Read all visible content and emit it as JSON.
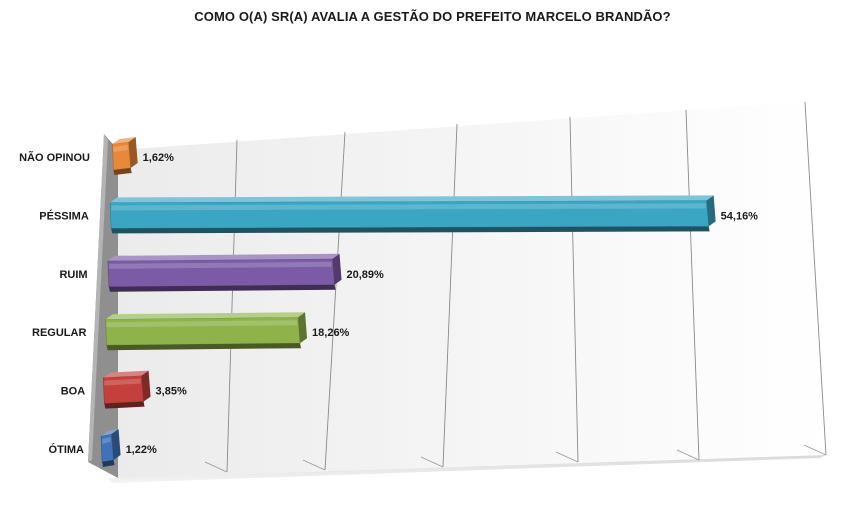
{
  "chart_data": {
    "type": "bar",
    "orientation": "horizontal",
    "title": "COMO O(A) SR(A) AVALIA A GESTÃO DO PREFEITO MARCELO BRANDÃO?",
    "categories": [
      "NÃO OPINOU",
      "PÉSSIMA",
      "RUIM",
      "REGULAR",
      "BOA",
      "ÓTIMA"
    ],
    "values": [
      1.62,
      54.16,
      20.89,
      18.26,
      3.85,
      1.22
    ],
    "value_labels": [
      "1,62%",
      "54,16%",
      "20,89%",
      "18,26%",
      "3,85%",
      "1,22%"
    ],
    "colors": [
      "#e8893a",
      "#3aa6c4",
      "#7c5ba6",
      "#8fb34a",
      "#c4403c",
      "#3f73b8"
    ],
    "xlim": [
      0,
      60
    ],
    "grid": true,
    "legend": "none",
    "style": "3d"
  }
}
